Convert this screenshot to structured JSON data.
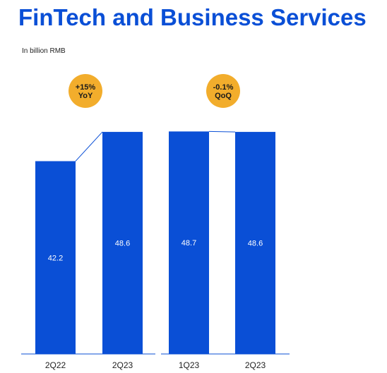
{
  "title": "FinTech and Business Services",
  "unit_note": "In billion RMB",
  "colors": {
    "title": "#0a4fd6",
    "bar": "#0a4fd6",
    "bar_label": "#ffffff",
    "badge": "#f2ad2c",
    "badge_text": "#1a1a1a",
    "axis": "#0a4fd6",
    "tick_label": "#222222"
  },
  "chart_data": [
    {
      "type": "bar",
      "categories": [
        "2Q22",
        "2Q23"
      ],
      "values": [
        42.2,
        48.6
      ],
      "data_labels": [
        "42.2",
        "48.6"
      ],
      "ylim": [
        0,
        55
      ],
      "annotation": {
        "line1": "+15%",
        "line2": "YoY"
      },
      "grid": false
    },
    {
      "type": "bar",
      "categories": [
        "1Q23",
        "2Q23"
      ],
      "values": [
        48.7,
        48.6
      ],
      "data_labels": [
        "48.7",
        "48.6"
      ],
      "ylim": [
        0,
        55
      ],
      "annotation": {
        "line1": "-0.1%",
        "line2": "QoQ"
      },
      "grid": false
    }
  ]
}
